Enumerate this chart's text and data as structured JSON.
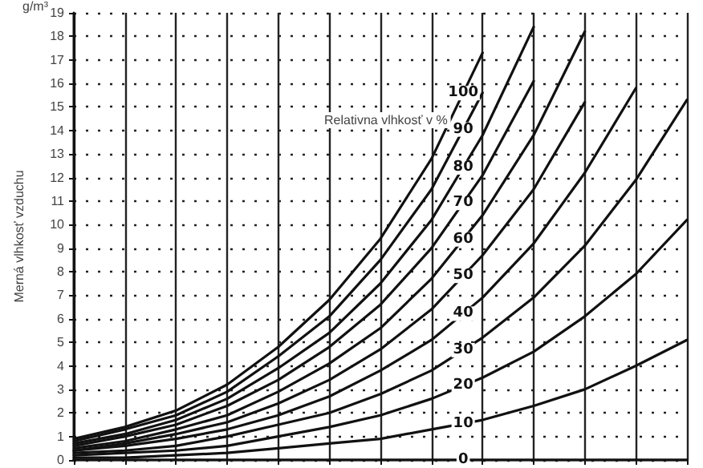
{
  "chart_data": {
    "type": "line",
    "ylabel": "Merná vlhkosť vzduchu",
    "annotations": [
      "g/m³",
      "Relativna vlhkosť v %"
    ],
    "categories": [
      null,
      null,
      null,
      null,
      null,
      null,
      null,
      null,
      null,
      null,
      null,
      null,
      null
    ],
    "ylim": [
      0,
      19
    ],
    "yticks": [
      0,
      1,
      2,
      3,
      4,
      5,
      6,
      7,
      8,
      9,
      10,
      11,
      12,
      13,
      14,
      15,
      16,
      17,
      18,
      19
    ],
    "tick_labels": "y",
    "grid": true,
    "line_style": "solid",
    "series": [
      {
        "name": "100",
        "color": "#111111",
        "values": [
          0.9,
          1.4,
          2.1,
          3.2,
          4.8,
          6.8,
          9.4,
          12.8,
          17.3,
          null,
          null,
          null,
          null
        ]
      },
      {
        "name": "90",
        "color": "#111111",
        "values": [
          0.8,
          1.3,
          1.9,
          2.9,
          4.4,
          6.1,
          8.5,
          11.5,
          15.6,
          null,
          null,
          null,
          null
        ]
      },
      {
        "name": "80",
        "color": "#111111",
        "values": [
          0.7,
          1.1,
          1.7,
          2.6,
          3.9,
          5.4,
          7.5,
          10.2,
          13.8,
          18.4,
          null,
          null,
          null
        ]
      },
      {
        "name": "70",
        "color": "#111111",
        "values": [
          0.6,
          1.0,
          1.5,
          2.3,
          3.4,
          4.8,
          6.6,
          9.0,
          12.1,
          16.1,
          null,
          null,
          null
        ]
      },
      {
        "name": "60",
        "color": "#111111",
        "values": [
          0.5,
          0.8,
          1.3,
          1.9,
          2.9,
          4.1,
          5.6,
          7.7,
          10.4,
          13.8,
          18.2,
          null,
          null
        ]
      },
      {
        "name": "50",
        "color": "#111111",
        "values": [
          0.4,
          0.7,
          1.1,
          1.6,
          2.4,
          3.4,
          4.7,
          6.4,
          8.7,
          11.5,
          15.2,
          null,
          null
        ]
      },
      {
        "name": "40",
        "color": "#111111",
        "values": [
          0.4,
          0.6,
          0.9,
          1.3,
          1.9,
          2.7,
          3.8,
          5.1,
          6.9,
          9.2,
          12.2,
          15.8,
          null
        ]
      },
      {
        "name": "30",
        "color": "#111111",
        "values": [
          0.3,
          0.4,
          0.6,
          1.0,
          1.5,
          2.0,
          2.8,
          3.8,
          5.2,
          6.9,
          9.1,
          11.9,
          15.3
        ]
      },
      {
        "name": "20",
        "color": "#111111",
        "values": [
          0.2,
          0.3,
          0.4,
          0.6,
          1.0,
          1.4,
          1.9,
          2.6,
          3.5,
          4.6,
          6.1,
          7.9,
          10.2
        ]
      },
      {
        "name": "10",
        "color": "#111111",
        "values": [
          0.1,
          0.1,
          0.2,
          0.3,
          0.5,
          0.7,
          0.9,
          1.3,
          1.7,
          2.3,
          3.0,
          4.0,
          5.1
        ]
      },
      {
        "name": "0",
        "color": "#111111",
        "values": [
          0,
          0,
          0,
          0,
          0,
          0,
          0,
          0,
          0,
          0,
          0,
          0,
          0
        ]
      }
    ]
  }
}
